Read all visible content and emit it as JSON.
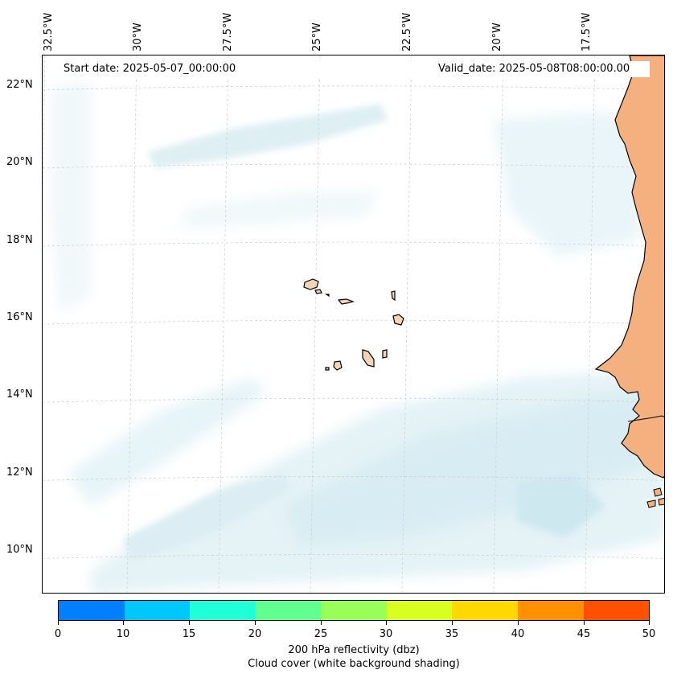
{
  "map": {
    "start_date": "Start date: 2025-05-07_00:00:00",
    "valid_date": "Valid_date: 2025-05-08T08:00:00.00",
    "lon_labels": [
      "32.5°W",
      "30°W",
      "27.5°W",
      "25°W",
      "22.5°W",
      "20°W",
      "17.5°W"
    ],
    "lat_labels": [
      "22°N",
      "20°N",
      "18°N",
      "16°N",
      "14°N",
      "12°N",
      "10°N"
    ],
    "lon_values": [
      -32.5,
      -30,
      -27.5,
      -25,
      -22.5,
      -20,
      -17.5
    ],
    "lat_values": [
      22,
      20,
      18,
      16,
      14,
      12,
      10
    ],
    "extent": {
      "lon_min": -32.5,
      "lon_max": -15.5,
      "lat_min": 9,
      "lat_max": 22.8
    },
    "land_color": "#f4b07e",
    "cloud_color": "#a8d8e4",
    "coast_color": "#000000",
    "grid_color": "#cccccc"
  },
  "colorbar": {
    "ticks": [
      "0",
      "10",
      "15",
      "20",
      "25",
      "30",
      "35",
      "40",
      "45",
      "50"
    ],
    "colors": [
      "#0080ff",
      "#00c8ff",
      "#20ffd8",
      "#60ff90",
      "#98ff58",
      "#d8ff20",
      "#ffd800",
      "#ff9000",
      "#ff5000"
    ],
    "label": "200 hPa reflectivity (dbz)",
    "sublabel": "Cloud cover (white background shading)"
  }
}
